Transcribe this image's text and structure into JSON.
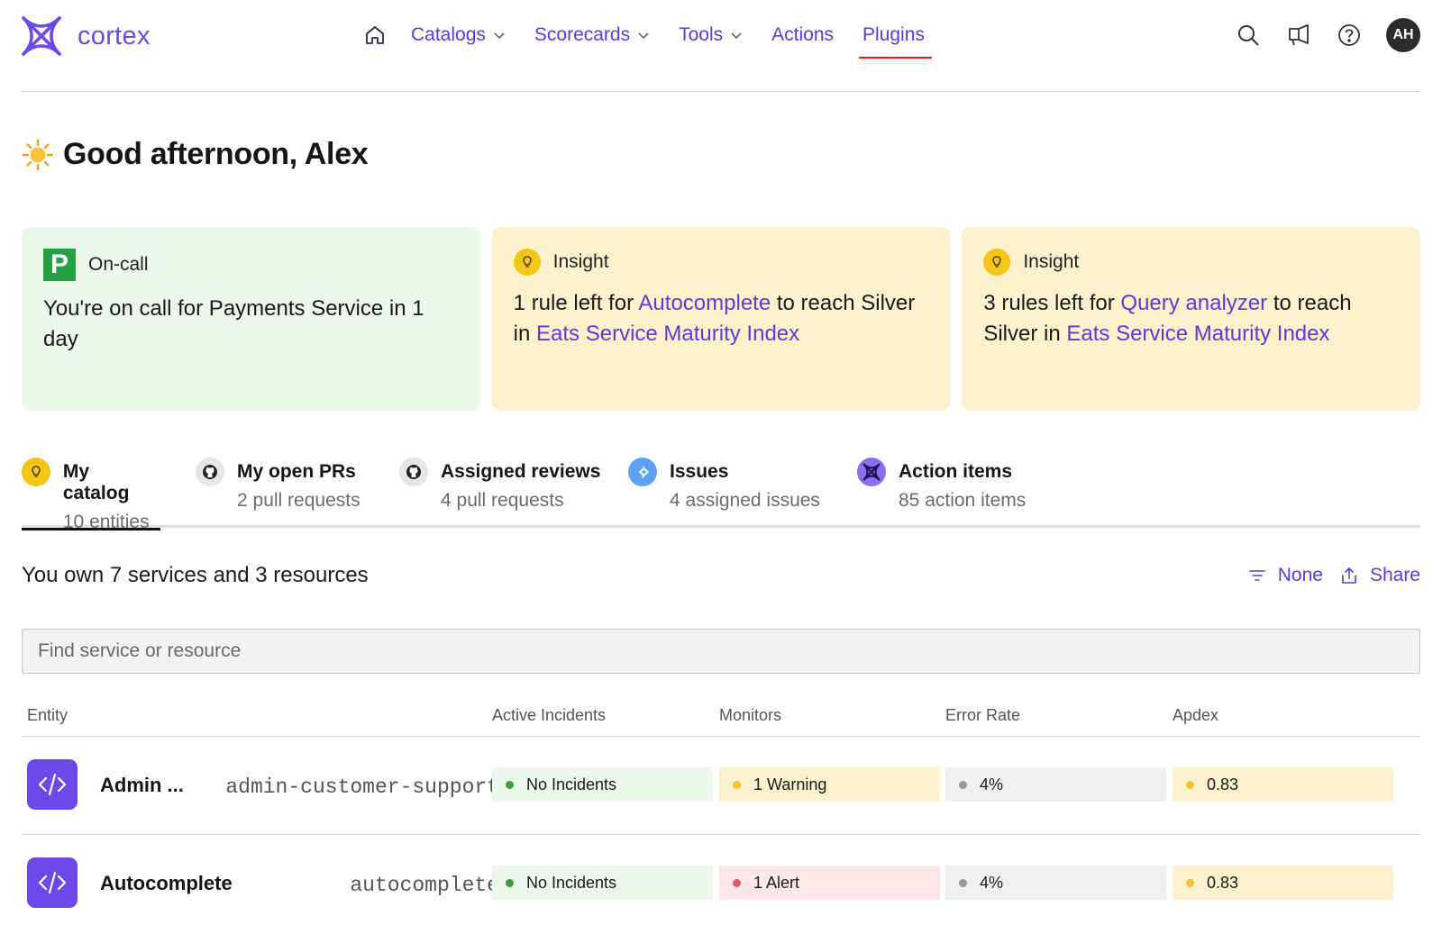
{
  "app": {
    "logo_text": "cortex"
  },
  "nav": {
    "items": [
      {
        "label": "Catalogs"
      },
      {
        "label": "Scorecards"
      },
      {
        "label": "Tools"
      },
      {
        "label": "Actions"
      },
      {
        "label": "Plugins"
      }
    ],
    "active": "Plugins"
  },
  "user": {
    "initials": "AH"
  },
  "greeting": "Good afternoon, Alex",
  "cards": [
    {
      "type": "On-call",
      "body": "You're on call for Payments Service in 1 day"
    },
    {
      "type": "Insight",
      "pre": "1 rule left for ",
      "link1": "Autocomplete",
      "mid": " to reach Silver in ",
      "link2": "Eats Service Maturity Index"
    },
    {
      "type": "Insight",
      "pre": "3 rules left for ",
      "link1": "Query analyzer",
      "mid": " to reach Silver in ",
      "link2": "Eats Service Maturity Index"
    }
  ],
  "tabs": [
    {
      "title": "My catalog",
      "sub": "10 entities",
      "icon": "lightbulb-icon"
    },
    {
      "title": "My open PRs",
      "sub": "2 pull requests",
      "icon": "github-icon"
    },
    {
      "title": "Assigned reviews",
      "sub": "4 pull requests",
      "icon": "github-icon"
    },
    {
      "title": "Issues",
      "sub": "4 assigned issues",
      "icon": "jira-icon"
    },
    {
      "title": "Action items",
      "sub": "85 action items",
      "icon": "cortex-icon"
    }
  ],
  "catalog": {
    "summary": "You own 7 services and 3 resources",
    "filter_label": "None",
    "share_label": "Share",
    "search_placeholder": "Find service or resource",
    "columns": [
      "Entity",
      "Active Incidents",
      "Monitors",
      "Error Rate",
      "Apdex"
    ],
    "rows": [
      {
        "name": "Admin ...",
        "tag": "admin-customer-support",
        "incidents": "No Incidents",
        "monitors": "1 Warning",
        "error_rate": "4%",
        "apdex": "0.83"
      },
      {
        "name": "Autocomplete",
        "tag": "autocomplete",
        "incidents": "No Incidents",
        "monitors": "1 Alert",
        "error_rate": "4%",
        "apdex": "0.83"
      }
    ]
  },
  "colors": {
    "accent": "#5b3ae0",
    "status_green": "#3f9c45",
    "status_yellow": "#f2c230",
    "status_red": "#e05668",
    "status_grey": "#9a9a9a"
  }
}
